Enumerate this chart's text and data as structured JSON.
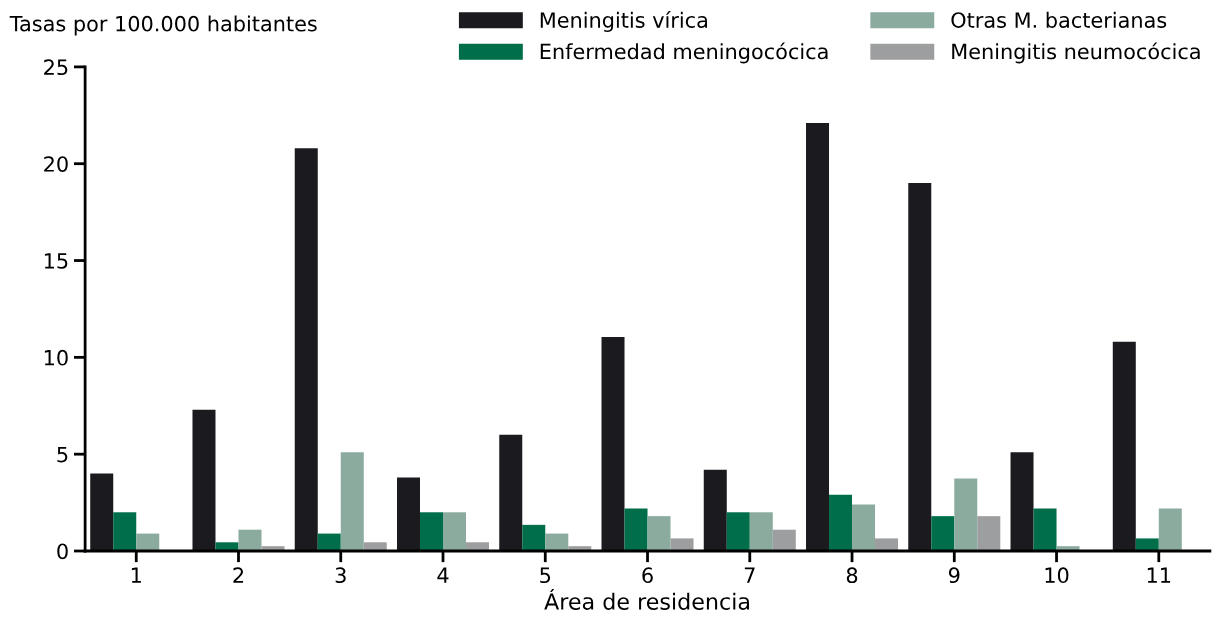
{
  "chart_data": {
    "type": "bar",
    "ylabel": "Tasas por 100.000 habitantes",
    "xlabel": "Área de residencia",
    "categories": [
      "1",
      "2",
      "3",
      "4",
      "5",
      "6",
      "7",
      "8",
      "9",
      "10",
      "11"
    ],
    "series": [
      {
        "name": "Meningitis vírica",
        "color": "#1b1a1e",
        "values": [
          4.0,
          7.3,
          20.8,
          3.8,
          6.0,
          11.05,
          4.2,
          22.1,
          19.0,
          5.1,
          10.8
        ]
      },
      {
        "name": "Enfermedad meningocócica",
        "color": "#006e4a",
        "values": [
          2.0,
          0.45,
          0.9,
          2.0,
          1.35,
          2.2,
          2.0,
          2.9,
          1.8,
          2.2,
          0.65
        ]
      },
      {
        "name": "Otras M. bacterianas",
        "color": "#8aab9d",
        "values": [
          0.9,
          1.1,
          5.1,
          2.0,
          0.9,
          1.8,
          2.0,
          2.4,
          3.75,
          0.25,
          2.2
        ]
      },
      {
        "name": "Meningitis neumocócica",
        "color": "#9d9ea0",
        "values": [
          0,
          0.25,
          0.45,
          0.45,
          0.25,
          0.65,
          1.1,
          0.65,
          1.8,
          0,
          null
        ]
      }
    ],
    "ylim": [
      0,
      25
    ],
    "yticks": [
      0,
      5,
      10,
      15,
      20,
      25
    ],
    "grid": false,
    "legend": "top right"
  }
}
